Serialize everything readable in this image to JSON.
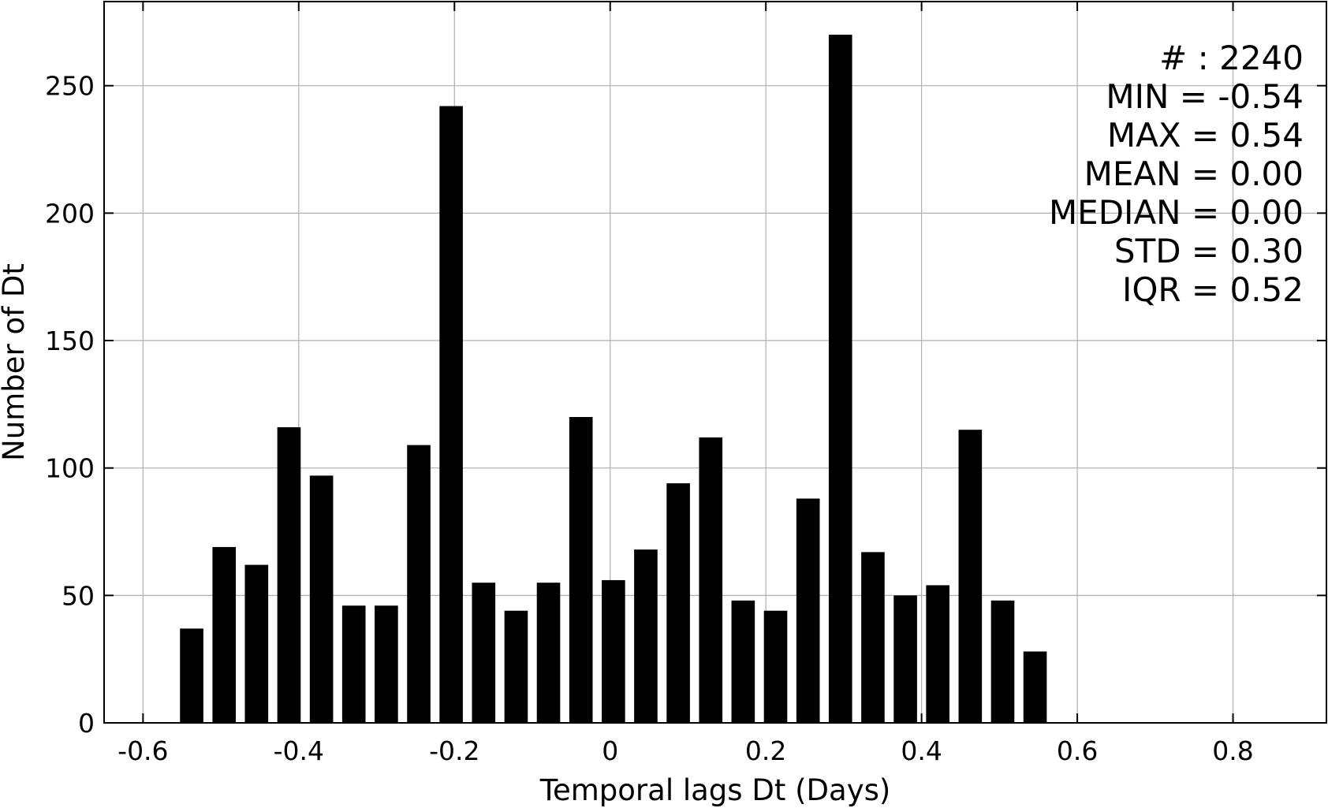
{
  "chart_data": {
    "type": "bar",
    "xlabel": "Temporal lags Dt (Days)",
    "ylabel": "Number of Dt",
    "xlim": [
      -0.65,
      0.92
    ],
    "ylim": [
      0,
      283
    ],
    "grid": true,
    "bar_color": "#000000",
    "grid_color": "#b0b0b0",
    "bar_width": 0.03,
    "x_ticks": [
      -0.6,
      -0.4,
      -0.2,
      0,
      0.2,
      0.4,
      0.6,
      0.8
    ],
    "x_tick_labels": [
      "-0.6",
      "-0.4",
      "-0.2",
      "0",
      "0.2",
      "0.4",
      "0.6",
      "0.8"
    ],
    "y_ticks": [
      0,
      50,
      100,
      150,
      200,
      250
    ],
    "y_tick_labels": [
      "0",
      "50",
      "100",
      "150",
      "200",
      "250"
    ],
    "x": [
      -0.5375,
      -0.4958,
      -0.4542,
      -0.4125,
      -0.3708,
      -0.3292,
      -0.2875,
      -0.2458,
      -0.2042,
      -0.1625,
      -0.1208,
      -0.0792,
      -0.0375,
      0.0042,
      0.0458,
      0.0875,
      0.1292,
      0.1708,
      0.2125,
      0.2542,
      0.2958,
      0.3375,
      0.3792,
      0.4208,
      0.4625,
      0.5042,
      0.5458
    ],
    "values": [
      37,
      69,
      62,
      116,
      97,
      46,
      46,
      109,
      242,
      55,
      44,
      55,
      120,
      56,
      68,
      94,
      112,
      48,
      44,
      88,
      270,
      67,
      50,
      54,
      115,
      48,
      28
    ],
    "stats": [
      "# : 2240",
      "MIN = -0.54",
      "MAX =  0.54",
      "MEAN = 0.00",
      "MEDIAN = 0.00",
      "STD = 0.30",
      "IQR = 0.52"
    ]
  }
}
